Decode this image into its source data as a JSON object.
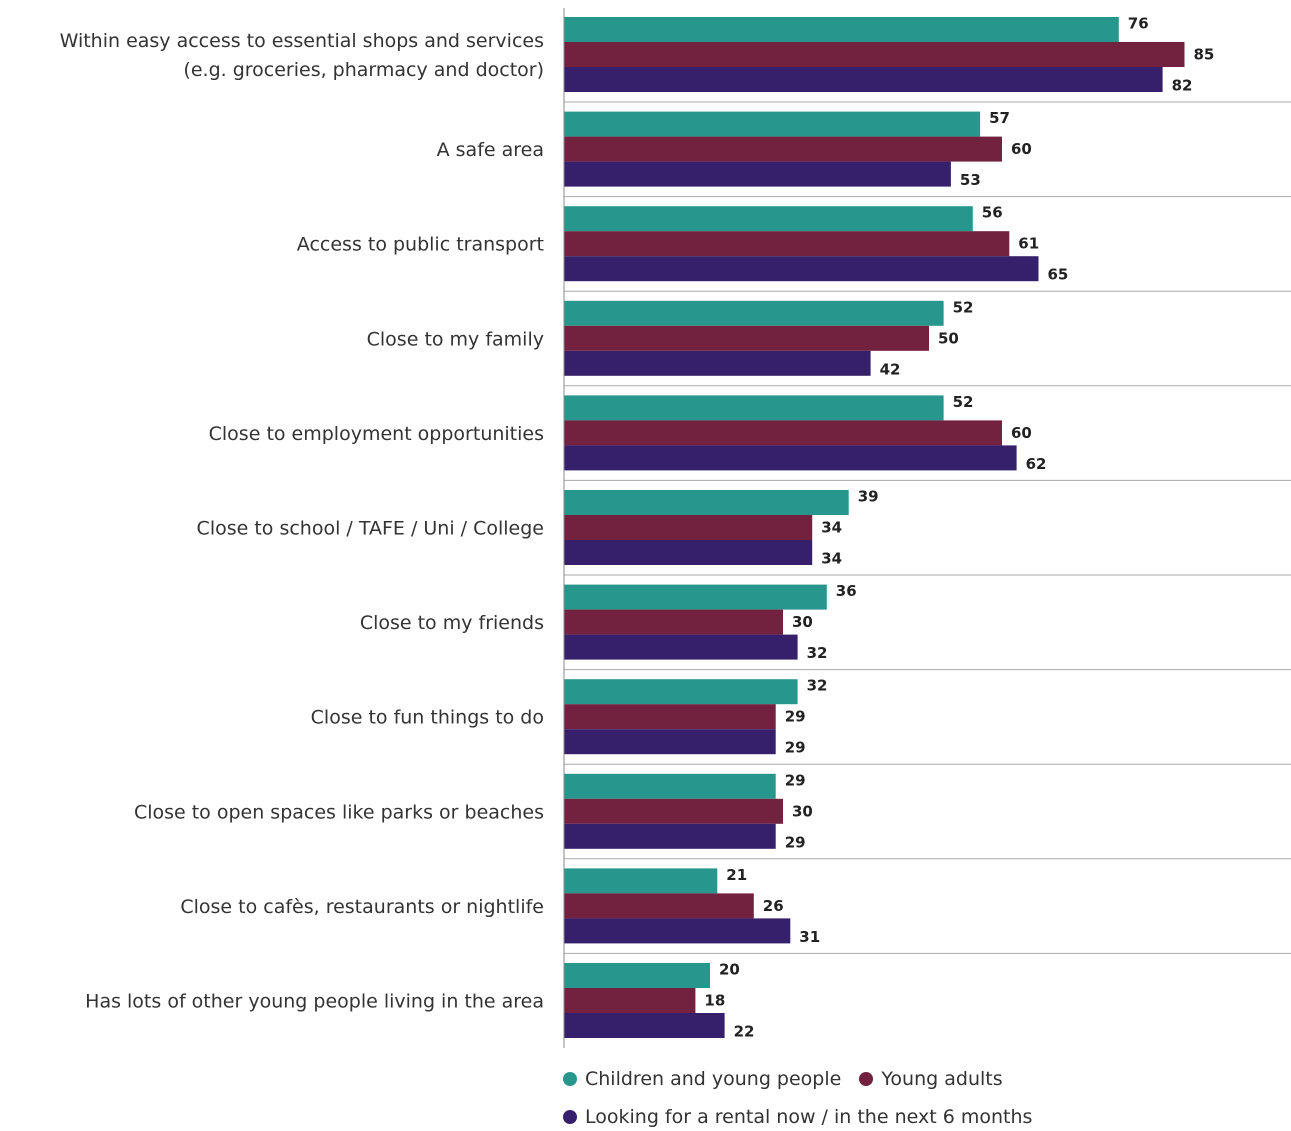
{
  "chart_data": {
    "type": "bar",
    "orientation": "horizontal",
    "categories": [
      [
        "Within easy access to essential shops and services",
        "(e.g. groceries, pharmacy and doctor)"
      ],
      [
        "A safe area"
      ],
      [
        "Access to public transport"
      ],
      [
        "Close to my family"
      ],
      [
        "Close to employment opportunities"
      ],
      [
        "Close to school / TAFE / Uni / College"
      ],
      [
        "Close to my friends"
      ],
      [
        "Close to fun things to do"
      ],
      [
        "Close to open spaces like parks or beaches"
      ],
      [
        "Close to cafès, restaurants or nightlife"
      ],
      [
        "Has lots of other young people living in the area"
      ]
    ],
    "series": [
      {
        "name": "Children and young people",
        "color": "#27978d",
        "values": [
          76,
          57,
          56,
          52,
          52,
          39,
          36,
          32,
          29,
          21,
          20
        ]
      },
      {
        "name": "Young adults",
        "color": "#72213f",
        "values": [
          85,
          60,
          61,
          50,
          60,
          34,
          30,
          29,
          30,
          26,
          18
        ]
      },
      {
        "name": "Looking for a rental now / in the next 6 months",
        "color": "#37206b",
        "values": [
          82,
          53,
          65,
          42,
          62,
          34,
          32,
          29,
          29,
          31,
          22
        ]
      }
    ],
    "xlim": [
      0,
      100
    ],
    "grid": false,
    "legend_position": "bottom"
  }
}
